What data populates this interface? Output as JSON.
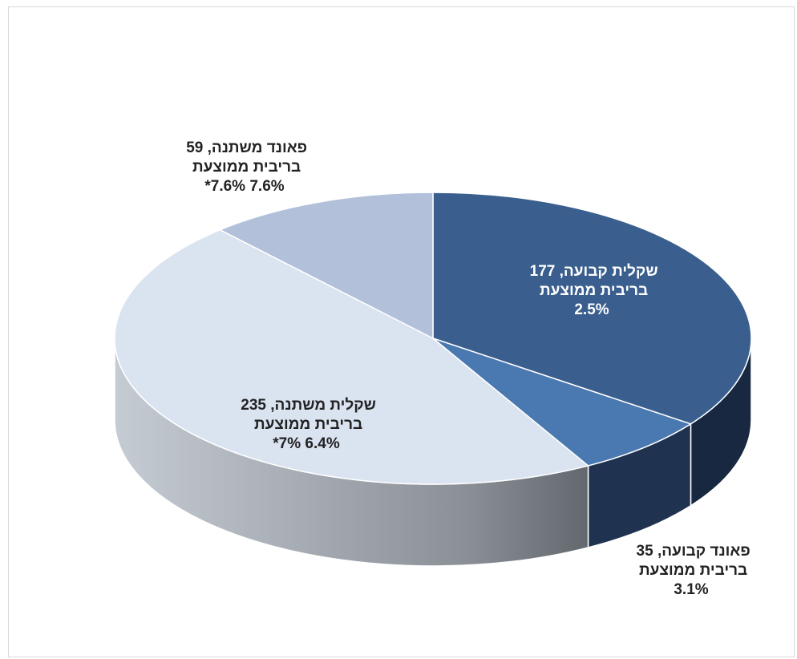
{
  "chart_data": {
    "type": "pie",
    "title": "",
    "slices": [
      {
        "value": 177,
        "label_lines": [
          "שקלית קבועה, 177",
          "בריבית ממוצעת",
          "2.5%"
        ],
        "color": "#3a5f8e",
        "side_color": "#182840",
        "label_color": "#ffffff"
      },
      {
        "value": 35,
        "label_lines": [
          "פאונד קבועה, 35",
          "בריבית ממוצעת",
          "3.1%"
        ],
        "color": "#4a78b0",
        "side_color": "#1f3350",
        "label_color": "#222222"
      },
      {
        "value": 235,
        "label_lines": [
          "שקלית משתנה, 235",
          "בריבית ממוצעת",
          "6.4% 7%*"
        ],
        "color": "#dae3f0",
        "side_color": "#8f969e",
        "label_color": "#222222"
      },
      {
        "value": 59,
        "label_lines": [
          "פאונד משתנה, 59",
          "בריבית ממוצעת",
          "7.6% 7.6%*"
        ],
        "color": "#b2c0d9",
        "side_color": "#8e97a3",
        "label_color": "#222222"
      }
    ]
  }
}
